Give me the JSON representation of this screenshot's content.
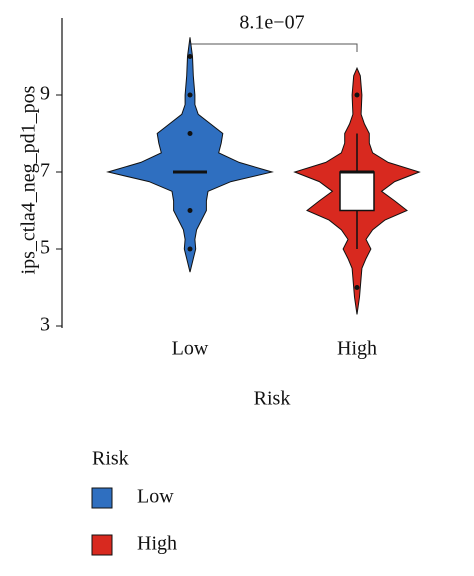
{
  "chart_data": {
    "type": "violin",
    "y_label": "ips_ctla4_neg_pd1_pos",
    "x_label": "Risk",
    "annotation": "8.1e−07",
    "legend_title": "Risk",
    "ylim": [
      3,
      11
    ],
    "yticks": [
      3,
      5,
      7,
      9
    ],
    "categories": [
      "Low",
      "High"
    ],
    "series": [
      {
        "name": "Low",
        "color": "#2f6fc0",
        "violin_y": [
          4.4,
          4.75,
          5,
          5.25,
          5.5,
          5.75,
          6,
          6.25,
          6.5,
          6.75,
          7,
          7.25,
          7.5,
          7.75,
          8,
          8.25,
          8.5,
          8.75,
          9,
          9.5,
          10,
          10.5
        ],
        "density": [
          0,
          0.04,
          0.07,
          0.06,
          0.08,
          0.14,
          0.2,
          0.2,
          0.22,
          0.5,
          1.0,
          0.6,
          0.35,
          0.38,
          0.4,
          0.25,
          0.1,
          0.06,
          0.06,
          0.04,
          0.03,
          0
        ],
        "q1": 7,
        "median": 7,
        "q3": 7,
        "whisker_low": 7,
        "whisker_high": 7,
        "outliers": [
          10,
          9,
          8,
          6,
          5
        ]
      },
      {
        "name": "High",
        "color": "#d8291f",
        "violin_y": [
          3.3,
          3.75,
          4,
          4.5,
          4.75,
          5,
          5.25,
          5.5,
          5.75,
          6,
          6.25,
          6.5,
          6.75,
          7,
          7.25,
          7.5,
          7.75,
          8,
          8.25,
          8.5,
          9,
          9.5,
          9.7
        ],
        "density": [
          0,
          0.03,
          0.04,
          0.06,
          0.11,
          0.17,
          0.11,
          0.19,
          0.34,
          0.61,
          0.46,
          0.3,
          0.46,
          0.76,
          0.38,
          0.19,
          0.15,
          0.15,
          0.09,
          0.05,
          0.06,
          0.04,
          0
        ],
        "q1": 6,
        "median": 7,
        "q3": 7,
        "whisker_low": 5,
        "whisker_high": 8,
        "outliers": [
          9,
          4
        ]
      }
    ]
  }
}
